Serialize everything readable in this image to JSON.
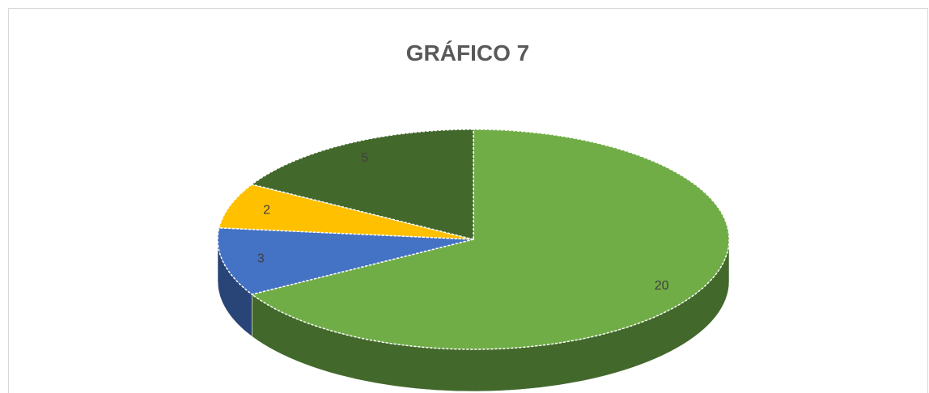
{
  "chart_data": {
    "type": "pie",
    "title": "GRÁFICO 7",
    "values": [
      20,
      3,
      2,
      5
    ],
    "colors": [
      "#70ad47",
      "#4472c4",
      "#ffc000",
      "#43682b"
    ],
    "start_angle": 0,
    "direction": "clockwise",
    "three_d": true
  }
}
